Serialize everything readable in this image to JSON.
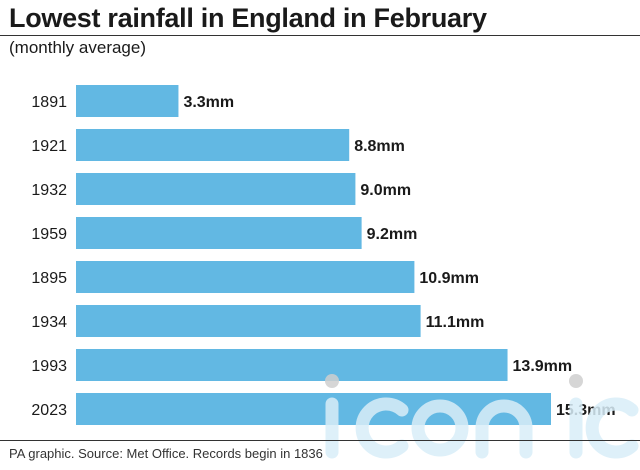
{
  "header": {
    "title": "Lowest rainfall in England in February",
    "subtitle": "(monthly average)"
  },
  "footer": {
    "source": "PA graphic. Source: Met Office. Records begin in 1836"
  },
  "watermark": {
    "text": "iconic"
  },
  "colors": {
    "bar": "#62b8e3",
    "text": "#1a1a1a",
    "watermark": "#d9eef8"
  },
  "chart_data": {
    "type": "bar",
    "orientation": "horizontal",
    "title": "Lowest rainfall in England in February",
    "subtitle": "(monthly average)",
    "xlabel": "",
    "ylabel": "",
    "categories": [
      "1891",
      "1921",
      "1932",
      "1959",
      "1895",
      "1934",
      "1993",
      "2023"
    ],
    "values": [
      3.3,
      8.8,
      9.0,
      9.2,
      10.9,
      11.1,
      13.9,
      15.3
    ],
    "data_labels": [
      "3.3mm",
      "8.8mm",
      "9.0mm",
      "9.2mm",
      "10.9mm",
      "11.1mm",
      "13.9mm",
      "15.3mm"
    ],
    "unit": "mm",
    "xlim": [
      0,
      15.3
    ],
    "grid": false,
    "legend": "none"
  }
}
